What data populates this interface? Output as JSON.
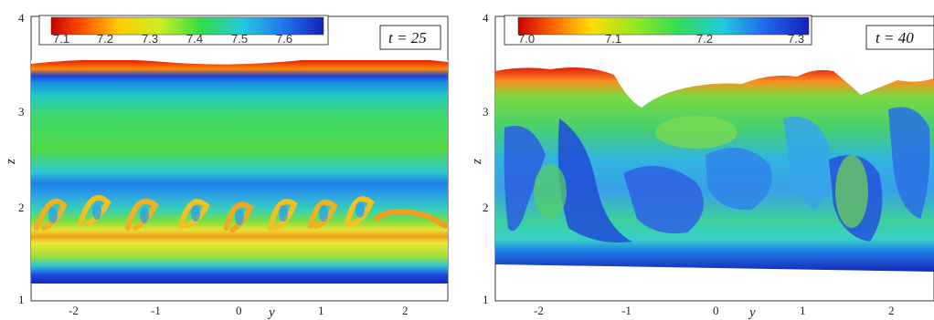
{
  "panels": [
    {
      "time_label": "t = 25",
      "colorbar_labels": [
        "7.1",
        "7.2",
        "7.3",
        "7.4",
        "7.5",
        "7.6"
      ],
      "x_axis": {
        "title": "y",
        "ticks": [
          "-2",
          "-1",
          "0",
          "1",
          "2"
        ]
      },
      "y_axis": {
        "title": "z",
        "ticks": [
          "1",
          "2",
          "3",
          "4"
        ]
      }
    },
    {
      "time_label": "t = 40",
      "colorbar_labels": [
        "7.0",
        "7.1",
        "7.2",
        "7.3"
      ],
      "x_axis": {
        "title": "y",
        "ticks": [
          "-2",
          "-1",
          "0",
          "1",
          "2"
        ]
      },
      "y_axis": {
        "title": "z",
        "ticks": [
          "1",
          "2",
          "3",
          "4"
        ]
      }
    }
  ],
  "colors": {
    "low": "#d90000",
    "mid_low": "#ffd000",
    "mid": "#33dd22",
    "mid_high": "#22cce0",
    "high": "#1a33cc",
    "frame": "#333333"
  }
}
